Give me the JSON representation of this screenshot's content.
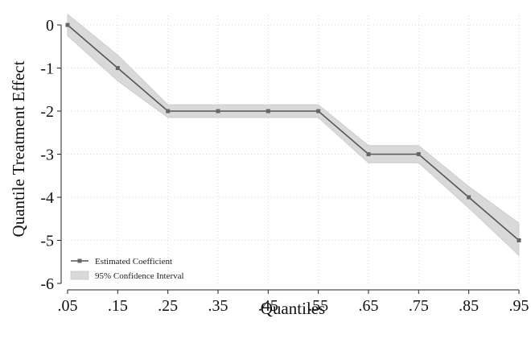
{
  "chart_data": {
    "type": "line",
    "title": "",
    "xlabel": "Quantiles",
    "ylabel": "Quantile Treatment Effect",
    "categories": [
      ".05",
      ".15",
      ".25",
      ".35",
      ".45",
      ".55",
      ".65",
      ".75",
      ".85",
      ".95"
    ],
    "x": [
      0.05,
      0.15,
      0.25,
      0.35,
      0.45,
      0.55,
      0.65,
      0.75,
      0.85,
      0.95
    ],
    "yticks": [
      "0",
      "-1",
      "-2",
      "-3",
      "-4",
      "-5",
      "-6"
    ],
    "yticks_values": [
      0,
      -1,
      -2,
      -3,
      -4,
      -5,
      -6
    ],
    "xlim": [
      0.05,
      0.95
    ],
    "ylim": [
      -6,
      0
    ],
    "grid": true,
    "legend_position": "bottom-left",
    "series": [
      {
        "name": "Estimated Coefficient",
        "values": [
          0,
          -1,
          -2,
          -2,
          -2,
          -2,
          -3,
          -3,
          -4,
          -5
        ],
        "color": "#555555"
      }
    ],
    "confidence_interval": {
      "name": "95% Confidence Interval",
      "upper": [
        0.25,
        -0.7,
        -1.85,
        -1.85,
        -1.85,
        -1.85,
        -2.8,
        -2.8,
        -3.75,
        -4.6
      ],
      "lower": [
        -0.25,
        -1.3,
        -2.15,
        -2.15,
        -2.15,
        -2.15,
        -3.2,
        -3.2,
        -4.25,
        -5.35
      ],
      "color": "#d9d9d9"
    }
  }
}
